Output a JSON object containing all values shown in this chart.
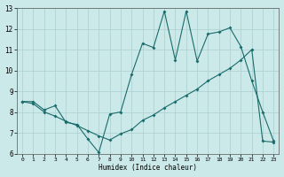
{
  "xlabel": "Humidex (Indice chaleur)",
  "bg_color": "#cce9e9",
  "grid_color": "#aacfcf",
  "line_color": "#1a6b6b",
  "line1_x": [
    0,
    1,
    2,
    3,
    4,
    5,
    6,
    7,
    8,
    9,
    10,
    11,
    12,
    13,
    14,
    15,
    16,
    17,
    18,
    19,
    20,
    21,
    22,
    23
  ],
  "line1_y": [
    8.5,
    8.5,
    8.1,
    8.3,
    7.5,
    7.4,
    6.7,
    6.05,
    7.9,
    8.0,
    9.8,
    11.3,
    11.1,
    12.85,
    10.5,
    12.85,
    10.45,
    11.75,
    11.85,
    12.05,
    11.15,
    9.5,
    8.0,
    6.6
  ],
  "line2_x": [
    0,
    1,
    2,
    3,
    4,
    5,
    6,
    7,
    8,
    9,
    10,
    11,
    12,
    13,
    14,
    15,
    16,
    17,
    18,
    19,
    20,
    21,
    22,
    23
  ],
  "line2_y": [
    8.5,
    8.4,
    8.0,
    7.8,
    7.55,
    7.35,
    7.1,
    6.85,
    6.65,
    6.95,
    7.15,
    7.6,
    7.85,
    8.2,
    8.5,
    8.8,
    9.1,
    9.5,
    9.8,
    10.1,
    10.5,
    11.0,
    6.6,
    6.55
  ],
  "ylim": [
    6,
    13
  ],
  "xlim_min": -0.5,
  "xlim_max": 23.5,
  "yticks": [
    6,
    7,
    8,
    9,
    10,
    11,
    12,
    13
  ],
  "xticks": [
    0,
    1,
    2,
    3,
    4,
    5,
    6,
    7,
    8,
    9,
    10,
    11,
    12,
    13,
    14,
    15,
    16,
    17,
    18,
    19,
    20,
    21,
    22,
    23
  ]
}
